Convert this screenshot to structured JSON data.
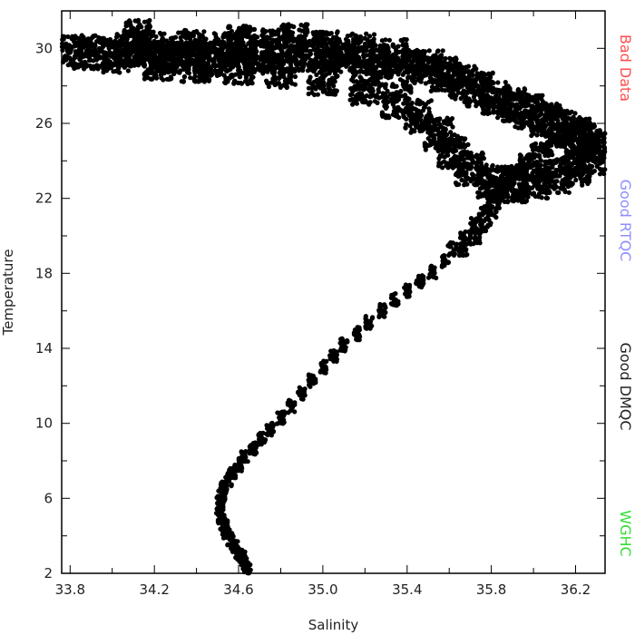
{
  "chart_data": {
    "type": "scatter",
    "xlabel": "Salinity",
    "ylabel": "Temperature",
    "xlim": [
      33.76,
      36.34
    ],
    "ylim": [
      2,
      32
    ],
    "xticks": [
      33.8,
      34.2,
      34.6,
      35.0,
      35.4,
      35.8,
      36.2
    ],
    "xtick_labels": [
      "33.8",
      "34.2",
      "34.6",
      "35.0",
      "35.4",
      "35.8",
      "36.2"
    ],
    "yticks": [
      2,
      6,
      10,
      14,
      18,
      22,
      26,
      30
    ],
    "ytick_labels": [
      "2",
      "6",
      "10",
      "14",
      "18",
      "22",
      "26",
      "30"
    ],
    "legend": [
      {
        "label": "Bad Data",
        "color": "#ff4d4d"
      },
      {
        "label": "Good RTQC",
        "color": "#8f8fff"
      },
      {
        "label": "Good DMQC",
        "color": "#222222"
      },
      {
        "label": "WGHC",
        "color": "#33dd33"
      }
    ],
    "marker_color": "#000000",
    "series": [
      {
        "points": [
          [
            34.64,
            2.2
          ],
          [
            34.63,
            2.5
          ],
          [
            34.62,
            2.8
          ],
          [
            34.6,
            3.1
          ],
          [
            34.58,
            3.4
          ],
          [
            34.56,
            3.8
          ],
          [
            34.54,
            4.2
          ],
          [
            34.53,
            4.6
          ],
          [
            34.52,
            5.0
          ],
          [
            34.51,
            5.4
          ],
          [
            34.51,
            5.8
          ],
          [
            34.52,
            6.2
          ],
          [
            34.53,
            6.6
          ],
          [
            34.55,
            7.0
          ],
          [
            34.57,
            7.4
          ],
          [
            34.6,
            7.8
          ],
          [
            34.63,
            8.2
          ],
          [
            34.67,
            8.7
          ],
          [
            34.71,
            9.2
          ],
          [
            34.75,
            9.7
          ],
          [
            34.8,
            10.3
          ],
          [
            34.85,
            10.9
          ],
          [
            34.9,
            11.6
          ],
          [
            34.95,
            12.3
          ],
          [
            35.0,
            13.0
          ],
          [
            35.05,
            13.6
          ],
          [
            35.1,
            14.2
          ],
          [
            35.16,
            14.8
          ],
          [
            35.22,
            15.4
          ],
          [
            35.28,
            16.0
          ],
          [
            35.34,
            16.6
          ],
          [
            35.4,
            17.1
          ],
          [
            35.46,
            17.6
          ],
          [
            35.52,
            18.1
          ],
          [
            35.58,
            18.7
          ],
          [
            35.64,
            19.3
          ],
          [
            35.7,
            19.9
          ],
          [
            35.75,
            20.6
          ],
          [
            35.79,
            21.3
          ],
          [
            35.83,
            22.0
          ],
          [
            35.87,
            22.7
          ],
          [
            35.92,
            23.4
          ],
          [
            35.98,
            24.0
          ],
          [
            36.04,
            24.6
          ],
          [
            36.1,
            25.1
          ],
          [
            36.16,
            25.6
          ],
          [
            36.22,
            26.0
          ],
          [
            36.27,
            25.3
          ]
        ]
      },
      {
        "points": [
          [
            33.8,
            29.8
          ],
          [
            33.9,
            29.8
          ],
          [
            34.02,
            29.6
          ],
          [
            34.08,
            29.9
          ],
          [
            34.12,
            30.6
          ],
          [
            34.18,
            30.0
          ],
          [
            34.22,
            29.2
          ],
          [
            34.3,
            29.7
          ],
          [
            34.38,
            30.1
          ],
          [
            34.46,
            29.4
          ],
          [
            34.55,
            29.9
          ],
          [
            34.62,
            30.3
          ],
          [
            34.7,
            29.5
          ],
          [
            34.78,
            30.1
          ],
          [
            34.86,
            30.4
          ],
          [
            34.94,
            29.7
          ],
          [
            35.02,
            30.0
          ],
          [
            35.1,
            29.6
          ],
          [
            35.18,
            29.9
          ],
          [
            35.26,
            29.3
          ],
          [
            35.34,
            29.6
          ],
          [
            35.42,
            29.1
          ],
          [
            35.5,
            29.0
          ],
          [
            35.58,
            28.6
          ],
          [
            35.66,
            28.2
          ],
          [
            35.74,
            27.8
          ],
          [
            35.82,
            27.4
          ],
          [
            35.9,
            27.0
          ],
          [
            35.98,
            26.6
          ],
          [
            36.06,
            26.2
          ],
          [
            36.14,
            25.8
          ],
          [
            36.22,
            25.2
          ],
          [
            36.3,
            24.8
          ],
          [
            36.28,
            24.2
          ],
          [
            36.2,
            23.6
          ],
          [
            36.1,
            23.2
          ],
          [
            36.0,
            22.9
          ],
          [
            35.9,
            22.7
          ],
          [
            35.8,
            22.9
          ],
          [
            35.7,
            23.6
          ],
          [
            35.62,
            24.5
          ],
          [
            35.55,
            25.4
          ],
          [
            35.45,
            26.4
          ],
          [
            35.35,
            27.2
          ],
          [
            35.2,
            27.9
          ],
          [
            35.0,
            28.4
          ],
          [
            34.8,
            28.8
          ],
          [
            34.6,
            29.0
          ],
          [
            34.4,
            29.1
          ],
          [
            34.25,
            29.5
          ]
        ]
      }
    ]
  }
}
